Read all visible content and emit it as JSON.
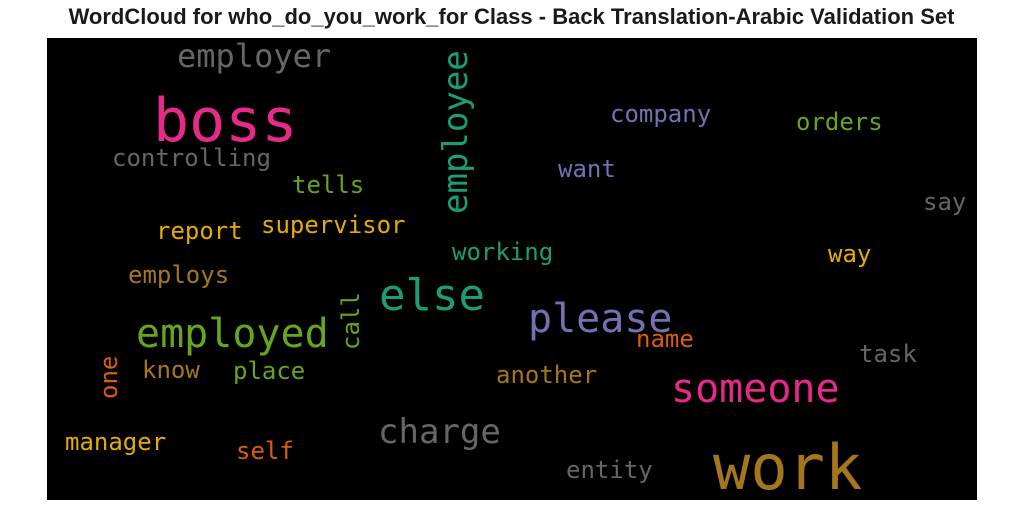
{
  "title": "WordCloud for who_do_you_work_for Class - Back Translation-Arabic Validation Set",
  "chart_data": {
    "type": "wordcloud",
    "background": "#000000",
    "words": [
      {
        "text": "boss",
        "size": 60,
        "color": "#e7298a",
        "vertical": false
      },
      {
        "text": "work",
        "size": 62,
        "color": "#a6761d",
        "vertical": false
      },
      {
        "text": "else",
        "size": 44,
        "color": "#1b9e77",
        "vertical": false
      },
      {
        "text": "employed",
        "size": 40,
        "color": "#66a61e",
        "vertical": false
      },
      {
        "text": "someone",
        "size": 40,
        "color": "#e7298a",
        "vertical": false
      },
      {
        "text": "please",
        "size": 40,
        "color": "#7570b3",
        "vertical": false
      },
      {
        "text": "employee",
        "size": 34,
        "color": "#1b9e77",
        "vertical": true
      },
      {
        "text": "employer",
        "size": 32,
        "color": "#666666",
        "vertical": false
      },
      {
        "text": "charge",
        "size": 34,
        "color": "#666666",
        "vertical": false
      },
      {
        "text": "controlling",
        "size": 24,
        "color": "#666666",
        "vertical": false
      },
      {
        "text": "company",
        "size": 24,
        "color": "#7570b3",
        "vertical": false
      },
      {
        "text": "orders",
        "size": 24,
        "color": "#66a61e",
        "vertical": false
      },
      {
        "text": "want",
        "size": 24,
        "color": "#7570b3",
        "vertical": false
      },
      {
        "text": "tells",
        "size": 24,
        "color": "#66a61e",
        "vertical": false
      },
      {
        "text": "say",
        "size": 24,
        "color": "#666666",
        "vertical": false
      },
      {
        "text": "supervisor",
        "size": 24,
        "color": "#e6ab02",
        "vertical": false
      },
      {
        "text": "report",
        "size": 24,
        "color": "#e6ab02",
        "vertical": false
      },
      {
        "text": "working",
        "size": 24,
        "color": "#1b9e77",
        "vertical": false
      },
      {
        "text": "way",
        "size": 24,
        "color": "#e6ab02",
        "vertical": false
      },
      {
        "text": "employs",
        "size": 24,
        "color": "#a6761d",
        "vertical": false
      },
      {
        "text": "call",
        "size": 24,
        "color": "#66a61e",
        "vertical": true
      },
      {
        "text": "name",
        "size": 24,
        "color": "#d95f02",
        "vertical": false
      },
      {
        "text": "task",
        "size": 24,
        "color": "#666666",
        "vertical": false
      },
      {
        "text": "one",
        "size": 24,
        "color": "#d95f02",
        "vertical": true
      },
      {
        "text": "know",
        "size": 24,
        "color": "#a6761d",
        "vertical": false
      },
      {
        "text": "place",
        "size": 24,
        "color": "#66a61e",
        "vertical": false
      },
      {
        "text": "another",
        "size": 24,
        "color": "#a6761d",
        "vertical": false
      },
      {
        "text": "manager",
        "size": 24,
        "color": "#e6ab02",
        "vertical": false
      },
      {
        "text": "self",
        "size": 24,
        "color": "#d95f02",
        "vertical": false
      },
      {
        "text": "entity",
        "size": 24,
        "color": "#666666",
        "vertical": false
      }
    ]
  }
}
